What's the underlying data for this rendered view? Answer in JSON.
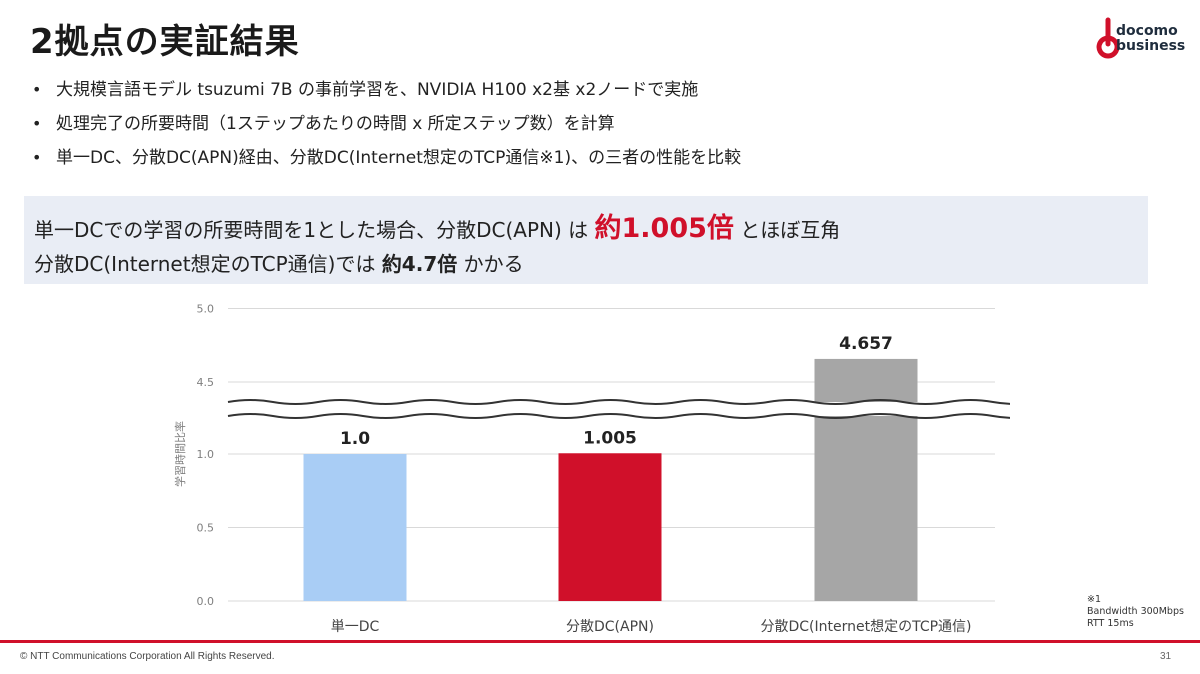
{
  "header": {
    "title": "2拠点の実証結果",
    "logo_line1": "docomo",
    "logo_line2": "business"
  },
  "bullets": [
    "大規模言語モデル tsuzumi 7B の事前学習を、NVIDIA H100 x2基 x2ノードで実施",
    "処理完了の所要時間（1ステップあたりの時間 x 所定ステップ数）を計算",
    "単一DC、分散DC(APN)経由、分散DC(Internet想定のTCP通信※1)、の三者の性能を比較"
  ],
  "callout": {
    "line1_a": "単一DCでの学習の所要時間を1とした場合、分散DC(APN) は ",
    "line1_highlight": "約1.005倍",
    "line1_b": " とほぼ互角",
    "line2_a": "分散DC(Internet想定のTCP通信)では ",
    "line2_highlight": "約4.7倍",
    "line2_b": " かかる"
  },
  "colors": {
    "accent_red": "#d0102a",
    "bar_single_dc": "#a9cdf5",
    "bar_apn": "#d0102a",
    "bar_internet": "#a6a6a6",
    "callout_bg": "#e9edf5"
  },
  "chart_data": {
    "type": "bar",
    "categories": [
      "単一DC",
      "分散DC(APN)",
      "分散DC(Internet想定のTCP通信)"
    ],
    "values": [
      1.0,
      1.005,
      4.657
    ],
    "data_labels": [
      "1.0",
      "1.005",
      "4.657"
    ],
    "ylabel": "学習時間比率",
    "lower_ticks": [
      "0.0",
      "0.5",
      "1.0"
    ],
    "upper_ticks": [
      "4.5",
      "5.0"
    ],
    "lower_range": [
      0,
      1.25
    ],
    "upper_range": [
      4.5,
      5.0
    ],
    "axis_break": true,
    "grid": true
  },
  "footnote": {
    "mark": "※1",
    "line1": "Bandwidth 300Mbps",
    "line2": "RTT 15ms"
  },
  "footer": {
    "copyright": "© NTT Communications Corporation All Rights Reserved.",
    "page": "31"
  }
}
